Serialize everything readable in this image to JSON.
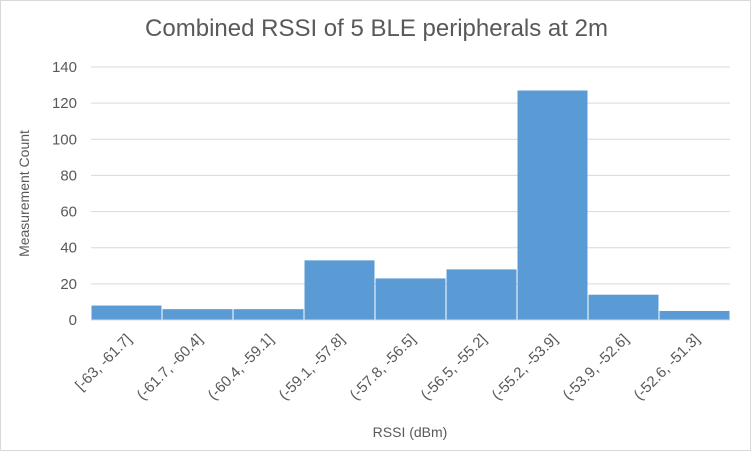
{
  "chart_data": {
    "type": "bar",
    "title": "Combined RSSI of 5 BLE peripherals at 2m",
    "xlabel": "RSSI (dBm)",
    "ylabel": "Measurement Count",
    "ylim": [
      0,
      140
    ],
    "yticks": [
      0,
      20,
      40,
      60,
      80,
      100,
      120,
      140
    ],
    "grid": true,
    "legend": "none",
    "categories": [
      "[-63, -61.7]",
      "(-61.7, -60.4]",
      "(-60.4, -59.1]",
      "(-59.1, -57.8]",
      "(-57.8, -56.5]",
      "(-56.5, -55.2]",
      "(-55.2, -53.9]",
      "(-53.9, -52.6]",
      "(-52.6, -51.3]"
    ],
    "values": [
      8,
      6,
      6,
      33,
      23,
      28,
      127,
      14,
      5
    ],
    "bar_color": "#5b9bd5",
    "grid_color": "#d9d9d9",
    "text_color": "#595959"
  }
}
